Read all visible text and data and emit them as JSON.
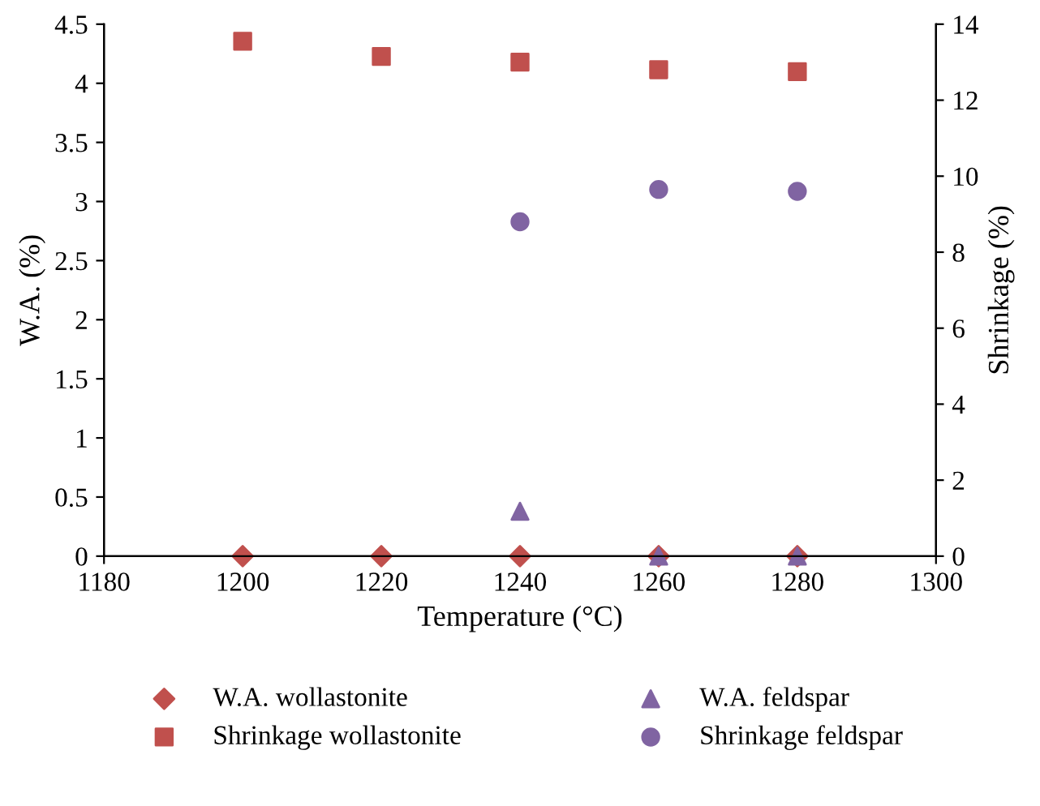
{
  "chart_data": {
    "type": "scatter",
    "xlabel": "Temperature (°C)",
    "ylabel": "W.A. (%)",
    "y2label": "Shrinkage (%)",
    "xlim": [
      1180,
      1300
    ],
    "xticks": [
      1180,
      1200,
      1220,
      1240,
      1260,
      1280,
      1300
    ],
    "ylim": [
      0,
      4.5
    ],
    "yticks": [
      0,
      0.5,
      1,
      1.5,
      2,
      2.5,
      3,
      3.5,
      4,
      4.5
    ],
    "y2lim": [
      0,
      14
    ],
    "y2ticks": [
      0,
      2,
      4,
      6,
      8,
      10,
      12,
      14
    ],
    "grid": false,
    "legend": "bottom",
    "series": [
      {
        "name": "W.A. wollastonite",
        "color": "#c0504d",
        "marker": "diamond",
        "x": [
          1200,
          1220,
          1240,
          1260,
          1280
        ],
        "values": [
          0,
          0,
          0,
          0,
          0
        ]
      },
      {
        "name": "Shrinkage wollastonite",
        "color": "#c0504d",
        "marker": "square",
        "axis": "y2",
        "x": [
          1200,
          1220,
          1240,
          1260,
          1280
        ],
        "values": [
          13.55,
          13.15,
          13.0,
          12.8,
          12.75
        ]
      },
      {
        "name": "W.A. feldspar",
        "color": "#8064a2",
        "marker": "triangle",
        "x": [
          1240,
          1260,
          1280
        ],
        "values": [
          0.38,
          0,
          0
        ]
      },
      {
        "name": "Shrinkage feldspar",
        "color": "#8064a2",
        "marker": "circle",
        "axis": "y2",
        "x": [
          1240,
          1260,
          1280
        ],
        "values": [
          8.8,
          9.65,
          9.6
        ]
      }
    ]
  }
}
